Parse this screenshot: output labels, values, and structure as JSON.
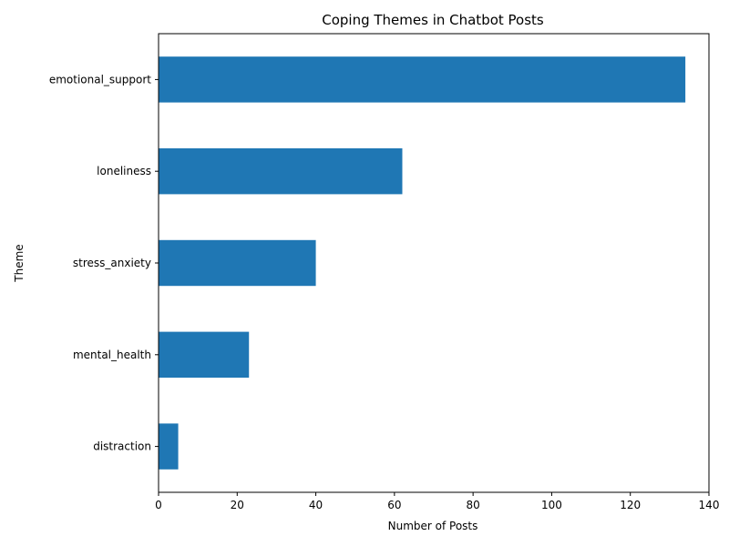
{
  "chart_data": {
    "type": "bar",
    "orientation": "horizontal",
    "title": "Coping Themes in Chatbot Posts",
    "xlabel": "Number of Posts",
    "ylabel": "Theme",
    "categories": [
      "emotional_support",
      "loneliness",
      "stress_anxiety",
      "mental_health",
      "distraction"
    ],
    "values": [
      134,
      62,
      40,
      23,
      5
    ],
    "xlim": [
      0,
      140
    ],
    "xticks": [
      0,
      20,
      40,
      60,
      80,
      100,
      120,
      140
    ],
    "grid": false,
    "legend": "none",
    "bar_color": "#1f77b4"
  }
}
